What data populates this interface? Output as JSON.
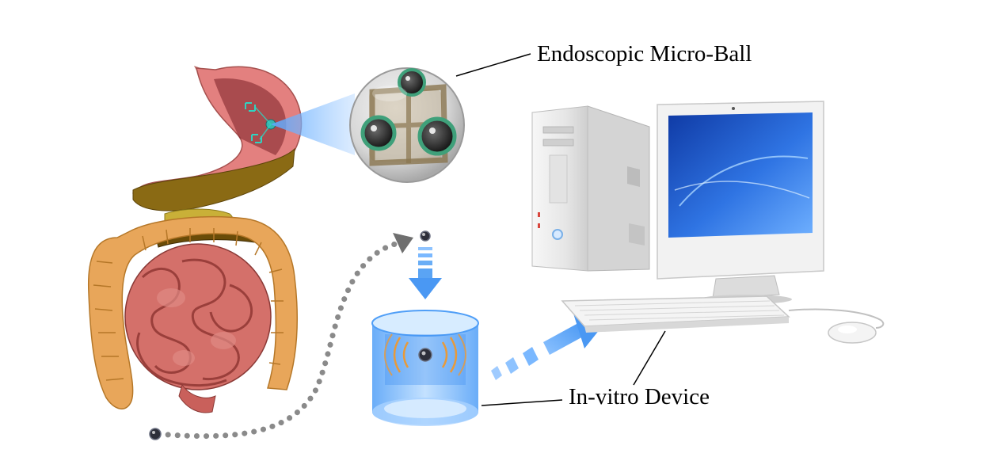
{
  "labels": {
    "micro_ball": "Endoscopic Micro-Ball",
    "in_vitro": "In-vitro Device"
  },
  "icons": [
    "stomach-icon",
    "intestines-icon",
    "micro-ball-icon",
    "capsule-icon",
    "in-vitro-device-icon",
    "computer-tower-icon",
    "monitor-icon",
    "keyboard-icon",
    "mouse-icon",
    "arrow-icon"
  ],
  "colors": {
    "stomach": "#e88f8f",
    "intestine": "#d9736e",
    "colon": "#e8a65a",
    "device_blue": "#4a9ef5",
    "arrow_blue": "#6aaef6",
    "path_gray": "#8a8a8a",
    "screen_blue": "#1a4fc2"
  }
}
